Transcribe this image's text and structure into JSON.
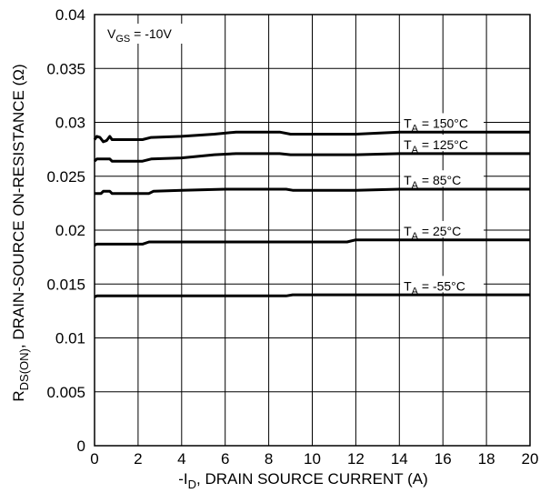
{
  "chart_data": {
    "type": "line",
    "xlabel": {
      "prefix": "-I",
      "sub": "D",
      "suffix": ", DRAIN SOURCE CURRENT (A)"
    },
    "ylabel": {
      "prefix": "R",
      "sub": "DS(ON)",
      "suffix": ", DRAIN-SOURCE ON-RESISTANCE (Ω)"
    },
    "annotation": {
      "prefix": "V",
      "sub": "GS",
      "suffix": " = -10V"
    },
    "xlim": [
      0,
      20
    ],
    "ylim": [
      0,
      0.04
    ],
    "xticks": [
      0,
      2,
      4,
      6,
      8,
      10,
      12,
      14,
      16,
      18,
      20
    ],
    "yticks": [
      0,
      0.005,
      0.01,
      0.015,
      0.02,
      0.025,
      0.03,
      0.035,
      0.04
    ],
    "ytick_labels": [
      "0",
      "0.005",
      "0.01",
      "0.015",
      "0.02",
      "0.025",
      "0.03",
      "0.035",
      "0.04"
    ],
    "grid": true,
    "series": [
      {
        "name": "T_A = 150°C",
        "label_prefix": "T",
        "label_sub": "A",
        "label_suffix": " = 150°C",
        "x": [
          0,
          0.1,
          0.25,
          0.4,
          0.55,
          0.7,
          0.8,
          0.9,
          2.2,
          2.6,
          4,
          5.5,
          6.5,
          8.5,
          9,
          12,
          14,
          20
        ],
        "y": [
          0.0284,
          0.0287,
          0.0286,
          0.0282,
          0.0283,
          0.0287,
          0.0284,
          0.0284,
          0.0284,
          0.0286,
          0.0287,
          0.0289,
          0.0291,
          0.0291,
          0.0289,
          0.0289,
          0.0291,
          0.0291
        ]
      },
      {
        "name": "T_A = 125°C",
        "label_prefix": "T",
        "label_sub": "A",
        "label_suffix": " = 125°C",
        "x": [
          0,
          0.1,
          0.7,
          0.8,
          2.2,
          2.6,
          4,
          5.5,
          6.5,
          8.5,
          9,
          12,
          14,
          20
        ],
        "y": [
          0.0264,
          0.0266,
          0.0266,
          0.0264,
          0.0264,
          0.0266,
          0.0267,
          0.027,
          0.0271,
          0.0271,
          0.027,
          0.027,
          0.0271,
          0.0271
        ]
      },
      {
        "name": "T_A = 85°C",
        "label_prefix": "T",
        "label_sub": "A",
        "label_suffix": " = 85°C",
        "x": [
          0,
          0.3,
          0.4,
          0.7,
          0.8,
          2.5,
          2.7,
          4,
          6,
          8.8,
          9.1,
          12,
          14,
          20
        ],
        "y": [
          0.0234,
          0.0234,
          0.0236,
          0.0236,
          0.0234,
          0.0234,
          0.0236,
          0.0237,
          0.0238,
          0.0238,
          0.0237,
          0.0237,
          0.0238,
          0.0238
        ]
      },
      {
        "name": "T_A = 25°C",
        "label_prefix": "T",
        "label_sub": "A",
        "label_suffix": " = 25°C",
        "x": [
          0,
          0.1,
          2.2,
          2.5,
          11.6,
          12,
          20
        ],
        "y": [
          0.0186,
          0.0187,
          0.0187,
          0.0189,
          0.0189,
          0.0191,
          0.0191
        ],
        "label_at": [
          14.2,
          0.0195
        ]
      },
      {
        "name": "T_A = -55°C",
        "label_prefix": "T",
        "label_sub": "A",
        "label_suffix": " = -55°C",
        "x": [
          0,
          0.1,
          8.8,
          9.1,
          20
        ],
        "y": [
          0.0138,
          0.0139,
          0.0139,
          0.014,
          0.014
        ]
      }
    ]
  }
}
